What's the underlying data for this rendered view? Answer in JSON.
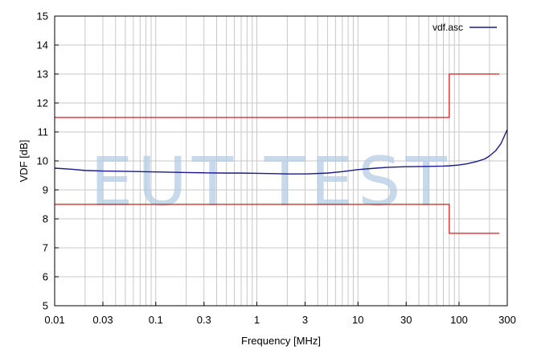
{
  "chart_data": {
    "type": "line",
    "title": "",
    "xlabel": "Frequency [MHz]",
    "ylabel": "VDF [dB]",
    "xscale": "log",
    "xlim": [
      0.01,
      300
    ],
    "ylim": [
      5,
      15
    ],
    "grid": true,
    "legend_position": "top-right",
    "x_ticks": [
      {
        "value": 0.01,
        "label": "0.01"
      },
      {
        "value": 0.03,
        "label": "0.03"
      },
      {
        "value": 0.1,
        "label": "0.1"
      },
      {
        "value": 0.3,
        "label": "0.3"
      },
      {
        "value": 1,
        "label": "1"
      },
      {
        "value": 3,
        "label": "3"
      },
      {
        "value": 10,
        "label": "10"
      },
      {
        "value": 30,
        "label": "30"
      },
      {
        "value": 100,
        "label": "100"
      },
      {
        "value": 300,
        "label": "300"
      }
    ],
    "y_ticks": [
      5,
      6,
      7,
      8,
      9,
      10,
      11,
      12,
      13,
      14,
      15
    ],
    "series": [
      {
        "name": "vdf.asc",
        "color": "#1a1a8c",
        "x": [
          0.01,
          0.015,
          0.02,
          0.03,
          0.05,
          0.07,
          0.1,
          0.2,
          0.3,
          0.5,
          0.7,
          1,
          1.5,
          2,
          3,
          5,
          7,
          10,
          15,
          20,
          30,
          50,
          70,
          80,
          100,
          120,
          150,
          180,
          200,
          230,
          260,
          280,
          300
        ],
        "y": [
          9.75,
          9.71,
          9.67,
          9.65,
          9.64,
          9.63,
          9.62,
          9.6,
          9.59,
          9.58,
          9.58,
          9.57,
          9.56,
          9.55,
          9.55,
          9.58,
          9.63,
          9.7,
          9.75,
          9.78,
          9.8,
          9.81,
          9.82,
          9.83,
          9.86,
          9.9,
          9.98,
          10.07,
          10.17,
          10.35,
          10.6,
          10.85,
          11.08
        ]
      }
    ],
    "limit_lines": [
      {
        "color": "#cc2222",
        "x": [
          0.01,
          80,
          80,
          250
        ],
        "y": [
          11.5,
          11.5,
          13,
          13
        ]
      },
      {
        "color": "#cc2222",
        "x": [
          0.01,
          80,
          80,
          250
        ],
        "y": [
          8.5,
          8.5,
          7.5,
          7.5
        ]
      }
    ]
  },
  "watermark": "EUT TEST"
}
